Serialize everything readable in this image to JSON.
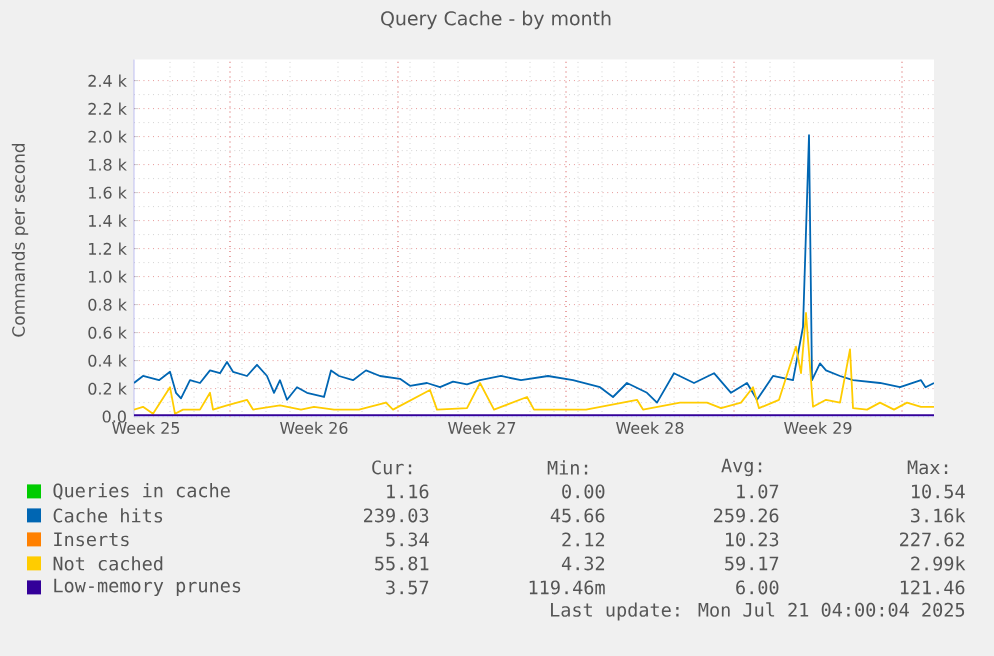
{
  "chart_data": {
    "type": "line",
    "title": "Query Cache - by month",
    "ylabel": "Commands per second",
    "xlim": [
      "2025-06-19T00:00",
      "2025-07-22T08:00"
    ],
    "ylim": [
      0,
      2550
    ],
    "xticks": [
      {
        "value": "2025-06-19T12:00",
        "label": "Week 25"
      },
      {
        "value": "2025-06-23T00:00",
        "label": null
      },
      {
        "value": "2025-06-26T12:00",
        "label": "Week 26"
      },
      {
        "value": "2025-06-30T00:00",
        "label": null
      },
      {
        "value": "2025-07-03T12:00",
        "label": "Week 27"
      },
      {
        "value": "2025-07-07T00:00",
        "label": null
      },
      {
        "value": "2025-07-10T12:00",
        "label": "Week 28"
      },
      {
        "value": "2025-07-14T00:00",
        "label": null
      },
      {
        "value": "2025-07-17T12:00",
        "label": "Week 29"
      },
      {
        "value": "2025-07-21T00:00",
        "label": null
      }
    ],
    "yticks": [
      {
        "value": 0,
        "label": "0.0"
      },
      {
        "value": 200,
        "label": "0.2 k"
      },
      {
        "value": 400,
        "label": "0.4 k"
      },
      {
        "value": 600,
        "label": "0.6 k"
      },
      {
        "value": 800,
        "label": "0.8 k"
      },
      {
        "value": 1000,
        "label": "1.0 k"
      },
      {
        "value": 1200,
        "label": "1.2 k"
      },
      {
        "value": 1400,
        "label": "1.4 k"
      },
      {
        "value": 1600,
        "label": "1.6 k"
      },
      {
        "value": 1800,
        "label": "1.8 k"
      },
      {
        "value": 2000,
        "label": "2.0 k"
      },
      {
        "value": 2200,
        "label": "2.2 k"
      },
      {
        "value": 2400,
        "label": "2.4 k"
      }
    ],
    "grid": true,
    "legend": "bottom",
    "series": [
      {
        "name": "Queries in cache",
        "color": "#00cc00"
      },
      {
        "name": "Cache hits",
        "color": "#0066b3",
        "x": [
          "2025-06-19T00:00",
          "2025-06-19T09:00",
          "2025-06-20T01:00",
          "2025-06-20T12:00",
          "2025-06-20T18:00",
          "2025-06-20T23:00",
          "2025-06-21T08:00",
          "2025-06-21T18:00",
          "2025-06-22T04:00",
          "2025-06-22T14:00",
          "2025-06-22T21:00",
          "2025-06-23T03:00",
          "2025-06-23T17:00",
          "2025-06-24T03:00",
          "2025-06-24T13:00",
          "2025-06-24T20:00",
          "2025-06-25T02:00",
          "2025-06-25T09:00",
          "2025-06-25T19:00",
          "2025-06-26T05:00",
          "2025-06-26T22:00",
          "2025-06-27T05:00",
          "2025-06-27T13:00",
          "2025-06-28T03:00",
          "2025-06-28T16:00",
          "2025-06-29T06:00",
          "2025-06-30T02:00",
          "2025-06-30T12:00",
          "2025-07-01T05:00",
          "2025-07-01T18:00",
          "2025-07-02T07:00",
          "2025-07-02T21:00",
          "2025-07-03T10:00",
          "2025-07-04T07:00",
          "2025-07-05T03:00",
          "2025-07-06T06:00",
          "2025-07-07T07:00",
          "2025-07-08T10:00",
          "2025-07-08T23:00",
          "2025-07-09T13:00",
          "2025-07-10T09:00",
          "2025-07-10T19:00",
          "2025-07-11T12:00",
          "2025-07-12T08:00",
          "2025-07-13T04:00",
          "2025-07-13T21:00",
          "2025-07-14T13:00",
          "2025-07-14T23:00",
          "2025-07-15T15:00",
          "2025-07-16T11:00",
          "2025-07-16T21:00",
          "2025-07-17T03:00",
          "2025-07-17T06:00",
          "2025-07-17T14:00",
          "2025-07-17T20:00",
          "2025-07-18T10:00",
          "2025-07-18T23:00",
          "2025-07-20T02:00",
          "2025-07-20T22:00",
          "2025-07-21T19:00",
          "2025-07-21T23:30",
          "2025-07-22T08:00"
        ],
        "values": [
          240,
          290,
          260,
          320,
          170,
          130,
          260,
          240,
          330,
          310,
          390,
          320,
          290,
          370,
          290,
          170,
          260,
          120,
          210,
          170,
          140,
          330,
          290,
          260,
          330,
          290,
          270,
          220,
          240,
          210,
          250,
          230,
          260,
          290,
          260,
          290,
          260,
          210,
          140,
          240,
          170,
          100,
          310,
          240,
          310,
          170,
          240,
          120,
          290,
          260,
          640,
          2010,
          260,
          380,
          330,
          290,
          260,
          240,
          210,
          260,
          210,
          240
        ]
      },
      {
        "name": "Inserts",
        "color": "#ff8000"
      },
      {
        "name": "Not cached",
        "color": "#ffcc00",
        "x": [
          "2025-06-19T00:00",
          "2025-06-19T09:00",
          "2025-06-19T19:00",
          "2025-06-20T12:00",
          "2025-06-20T17:00",
          "2025-06-21T01:00",
          "2025-06-21T18:00",
          "2025-06-22T04:00",
          "2025-06-22T07:00",
          "2025-06-22T21:00",
          "2025-06-23T17:00",
          "2025-06-23T23:00",
          "2025-06-25T02:00",
          "2025-06-25T23:00",
          "2025-06-26T12:00",
          "2025-06-27T08:00",
          "2025-06-28T09:00",
          "2025-06-29T12:00",
          "2025-06-29T19:00",
          "2025-07-01T08:00",
          "2025-07-01T15:00",
          "2025-07-02T21:00",
          "2025-07-03T10:00",
          "2025-07-04T00:00",
          "2025-07-05T09:00",
          "2025-07-05T16:00",
          "2025-07-07T07:00",
          "2025-07-07T20:00",
          "2025-07-09T23:00",
          "2025-07-10T05:00",
          "2025-07-11T18:00",
          "2025-07-12T21:00",
          "2025-07-13T11:00",
          "2025-07-14T07:00",
          "2025-07-14T19:00",
          "2025-07-15T01:00",
          "2025-07-15T21:00",
          "2025-07-16T14:00",
          "2025-07-16T19:00",
          "2025-07-17T00:00",
          "2025-07-17T07:00",
          "2025-07-17T20:00",
          "2025-07-18T10:00",
          "2025-07-18T20:00",
          "2025-07-18T23:00",
          "2025-07-19T13:00",
          "2025-07-20T02:00",
          "2025-07-20T16:00",
          "2025-07-21T05:00",
          "2025-07-21T19:00",
          "2025-07-22T08:00"
        ],
        "values": [
          50,
          70,
          20,
          210,
          20,
          50,
          50,
          170,
          50,
          80,
          120,
          50,
          80,
          50,
          70,
          50,
          50,
          100,
          50,
          190,
          50,
          60,
          240,
          50,
          140,
          50,
          50,
          50,
          120,
          50,
          100,
          100,
          60,
          100,
          210,
          60,
          120,
          500,
          310,
          740,
          70,
          120,
          100,
          480,
          60,
          50,
          100,
          50,
          100,
          70,
          70
        ]
      },
      {
        "name": "Low-memory prunes",
        "color": "#330099",
        "x": [
          "2025-06-19T00:00",
          "2025-06-23T00:00",
          "2025-06-30T00:00",
          "2025-07-07T00:00",
          "2025-07-14T00:00",
          "2025-07-22T08:00"
        ],
        "values": [
          10,
          10,
          10,
          10,
          10,
          10
        ]
      }
    ],
    "annotations": [
      "Cur:",
      "Min:",
      "Avg:",
      "Max:",
      "1.16",
      "0.00",
      "1.07",
      "10.54",
      "239.03",
      "45.66",
      "259.26",
      "3.16k",
      "5.34",
      "2.12",
      "10.23",
      "227.62",
      "55.81",
      "4.32",
      "59.17",
      "2.99k",
      "3.57",
      "119.46m",
      "6.00",
      "121.46",
      "Last update: Mon Jul 21 04:00:04 2025"
    ]
  }
}
